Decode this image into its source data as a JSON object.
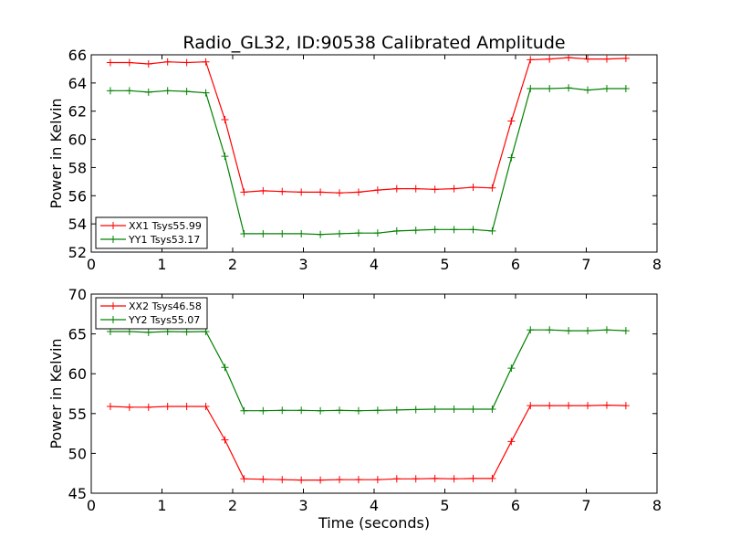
{
  "title": "Radio_GL32, ID:90538 Calibrated Amplitude",
  "chart_data": [
    {
      "type": "line",
      "title": "Radio_GL32, ID:90538 Calibrated Amplitude",
      "xlabel": "",
      "ylabel": "Power in Kelvin",
      "xlim": [
        0,
        8
      ],
      "ylim": [
        52,
        66
      ],
      "xticks": [
        "0",
        "1",
        "2",
        "3",
        "4",
        "5",
        "6",
        "7",
        "8"
      ],
      "yticks": [
        "52",
        "54",
        "56",
        "58",
        "60",
        "62",
        "64",
        "66"
      ],
      "grid": false,
      "legend_position": "lower-left",
      "series": [
        {
          "name": "XX1 Tsys55.99",
          "color": "#ff0000",
          "x": [
            0.27,
            0.54,
            0.81,
            1.08,
            1.35,
            1.62,
            1.89,
            2.16,
            2.43,
            2.7,
            2.97,
            3.24,
            3.51,
            3.78,
            4.05,
            4.32,
            4.59,
            4.86,
            5.13,
            5.4,
            5.67,
            5.94,
            6.21,
            6.48,
            6.75,
            7.02,
            7.29,
            7.56
          ],
          "y": [
            65.45,
            65.45,
            65.35,
            65.5,
            65.45,
            65.5,
            61.4,
            56.25,
            56.35,
            56.3,
            56.25,
            56.25,
            56.2,
            56.25,
            56.4,
            56.5,
            56.5,
            56.45,
            56.5,
            56.6,
            56.55,
            61.3,
            65.65,
            65.7,
            65.8,
            65.7,
            65.7,
            65.75
          ]
        },
        {
          "name": "YY1 Tsys53.17",
          "color": "#008000",
          "x": [
            0.27,
            0.54,
            0.81,
            1.08,
            1.35,
            1.62,
            1.89,
            2.16,
            2.43,
            2.7,
            2.97,
            3.24,
            3.51,
            3.78,
            4.05,
            4.32,
            4.59,
            4.86,
            5.13,
            5.4,
            5.67,
            5.94,
            6.21,
            6.48,
            6.75,
            7.02,
            7.29,
            7.56
          ],
          "y": [
            63.45,
            63.45,
            63.35,
            63.45,
            63.4,
            63.3,
            58.8,
            53.3,
            53.3,
            53.3,
            53.3,
            53.25,
            53.3,
            53.35,
            53.35,
            53.5,
            53.55,
            53.6,
            53.6,
            53.6,
            53.5,
            58.7,
            63.6,
            63.6,
            63.65,
            63.5,
            63.6,
            63.6
          ]
        }
      ]
    },
    {
      "type": "line",
      "title": "",
      "xlabel": "Time (seconds)",
      "ylabel": "Power in Kelvin",
      "xlim": [
        0,
        8
      ],
      "ylim": [
        45,
        70
      ],
      "xticks": [
        "0",
        "1",
        "2",
        "3",
        "4",
        "5",
        "6",
        "7",
        "8"
      ],
      "yticks": [
        "45",
        "50",
        "55",
        "60",
        "65",
        "70"
      ],
      "grid": false,
      "legend_position": "upper-left",
      "series": [
        {
          "name": "XX2 Tsys46.58",
          "color": "#ff0000",
          "x": [
            0.27,
            0.54,
            0.81,
            1.08,
            1.35,
            1.62,
            1.89,
            2.16,
            2.43,
            2.7,
            2.97,
            3.24,
            3.51,
            3.78,
            4.05,
            4.32,
            4.59,
            4.86,
            5.13,
            5.4,
            5.67,
            5.94,
            6.21,
            6.48,
            6.75,
            7.02,
            7.29,
            7.56
          ],
          "y": [
            55.9,
            55.8,
            55.8,
            55.9,
            55.9,
            55.9,
            51.7,
            46.8,
            46.75,
            46.7,
            46.65,
            46.65,
            46.7,
            46.7,
            46.7,
            46.8,
            46.8,
            46.85,
            46.8,
            46.85,
            46.85,
            51.5,
            56.0,
            56.0,
            56.0,
            56.0,
            56.05,
            56.0
          ]
        },
        {
          "name": "YY2 Tsys55.07",
          "color": "#008000",
          "x": [
            0.27,
            0.54,
            0.81,
            1.08,
            1.35,
            1.62,
            1.89,
            2.16,
            2.43,
            2.7,
            2.97,
            3.24,
            3.51,
            3.78,
            4.05,
            4.32,
            4.59,
            4.86,
            5.13,
            5.4,
            5.67,
            5.94,
            6.21,
            6.48,
            6.75,
            7.02,
            7.29,
            7.56
          ],
          "y": [
            65.3,
            65.3,
            65.2,
            65.3,
            65.25,
            65.3,
            60.8,
            55.35,
            55.35,
            55.4,
            55.4,
            55.35,
            55.4,
            55.35,
            55.4,
            55.45,
            55.5,
            55.55,
            55.55,
            55.55,
            55.55,
            60.7,
            65.5,
            65.5,
            65.4,
            65.4,
            65.5,
            65.4
          ]
        }
      ]
    }
  ]
}
